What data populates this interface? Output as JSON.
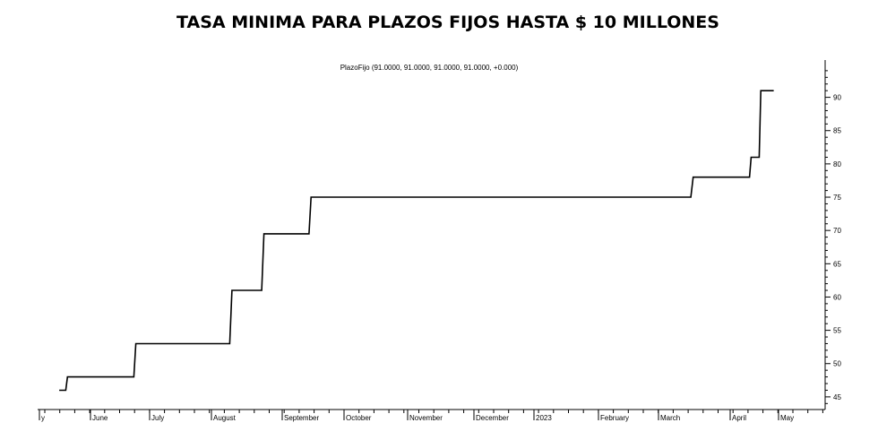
{
  "chart_data": {
    "type": "line",
    "title": "TASA MINIMA PARA PLAZOS FIJOS HASTA $ 10 MILLONES",
    "legend": "PlazoFijo (91.0000, 91.0000, 91.0000, 91.0000, +0.000)",
    "x_axis": {
      "tick_labels": [
        "y",
        "June",
        "July",
        "August",
        "September",
        "October",
        "November",
        "December",
        "2023",
        "February",
        "March",
        "April",
        "May"
      ],
      "range": [
        "2022-05",
        "2023-05"
      ]
    },
    "y_axis": {
      "ticks": [
        45,
        50,
        55,
        60,
        65,
        70,
        75,
        80,
        85,
        90
      ],
      "range": [
        43.1,
        95.6
      ],
      "position": "right"
    },
    "series": [
      {
        "x": [
          "2022-05-13",
          "2022-05-17",
          "2022-05-18",
          "2022-06-23",
          "2022-06-24",
          "2022-08-09",
          "2022-08-10",
          "2022-08-23",
          "2022-08-24",
          "2022-09-14",
          "2022-09-15",
          "2023-03-15",
          "2023-03-16",
          "2023-04-13",
          "2023-04-14",
          "2023-04-19",
          "2023-04-20",
          "2023-04-28"
        ],
        "values": [
          46,
          46,
          48,
          48,
          53,
          53,
          61,
          61,
          69.5,
          69.5,
          75,
          75,
          78,
          78,
          81,
          81,
          91,
          91
        ]
      }
    ],
    "grid": false
  }
}
